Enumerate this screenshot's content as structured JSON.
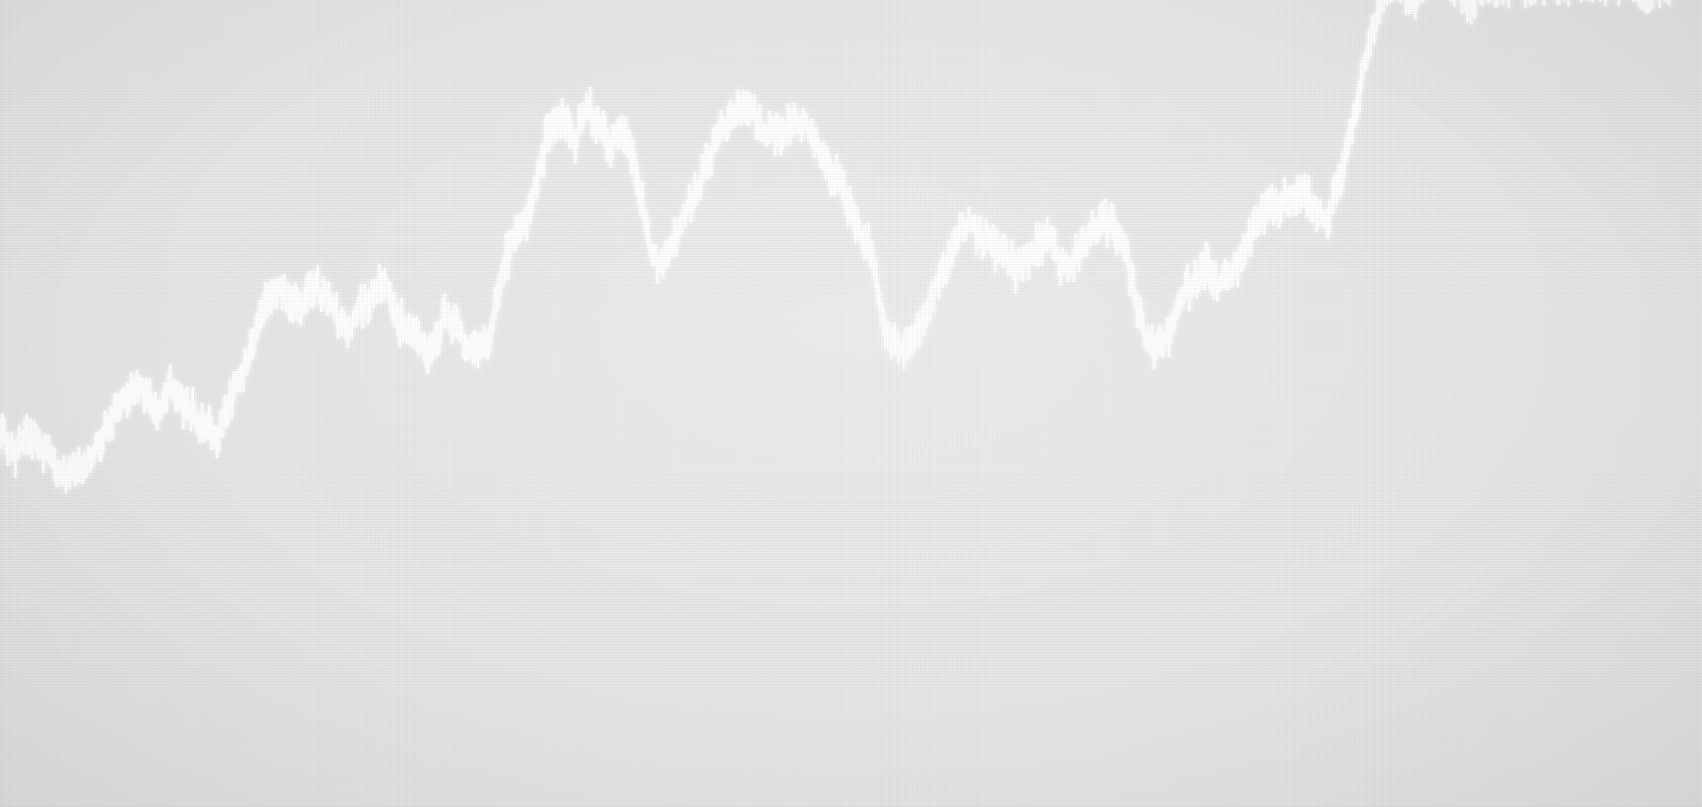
{
  "scene": {
    "description_kind": "photo-of-screen",
    "background_color": "#e6e6e6",
    "line_color": "#ffffff",
    "glow_color": "#ffffff"
  },
  "trace": {
    "values": [
      0.3,
      0.31,
      0.28,
      0.31,
      0.29,
      0.27,
      0.25,
      0.26,
      0.27,
      0.3,
      0.33,
      0.36,
      0.38,
      0.37,
      0.35,
      0.38,
      0.36,
      0.34,
      0.33,
      0.31,
      0.36,
      0.4,
      0.45,
      0.52,
      0.53,
      0.52,
      0.5,
      0.54,
      0.52,
      0.49,
      0.47,
      0.5,
      0.52,
      0.55,
      0.49,
      0.47,
      0.45,
      0.43,
      0.49,
      0.47,
      0.45,
      0.43,
      0.47,
      0.57,
      0.61,
      0.64,
      0.72,
      0.78,
      0.8,
      0.76,
      0.81,
      0.78,
      0.75,
      0.77,
      0.73,
      0.62,
      0.56,
      0.59,
      0.64,
      0.67,
      0.72,
      0.76,
      0.79,
      0.81,
      0.8,
      0.77,
      0.77,
      0.78,
      0.79,
      0.76,
      0.73,
      0.7,
      0.66,
      0.62,
      0.58,
      0.47,
      0.44,
      0.45,
      0.47,
      0.52,
      0.56,
      0.61,
      0.64,
      0.61,
      0.6,
      0.59,
      0.56,
      0.58,
      0.6,
      0.61,
      0.56,
      0.58,
      0.61,
      0.63,
      0.63,
      0.61,
      0.52,
      0.45,
      0.44,
      0.47,
      0.52,
      0.55,
      0.57,
      0.54,
      0.55,
      0.58,
      0.62,
      0.65,
      0.66,
      0.67,
      0.68,
      0.66,
      0.63,
      0.69,
      0.76,
      0.85,
      0.93,
      0.98,
      1.0,
      0.97,
      0.99,
      1.0,
      1.0,
      0.99,
      0.97,
      0.99,
      1.0,
      1.0,
      1.0,
      0.99,
      1.0,
      1.0,
      1.0,
      1.0,
      1.0,
      1.0,
      1.0,
      1.0,
      1.0,
      0.96,
      1.0,
      1.0
    ]
  }
}
